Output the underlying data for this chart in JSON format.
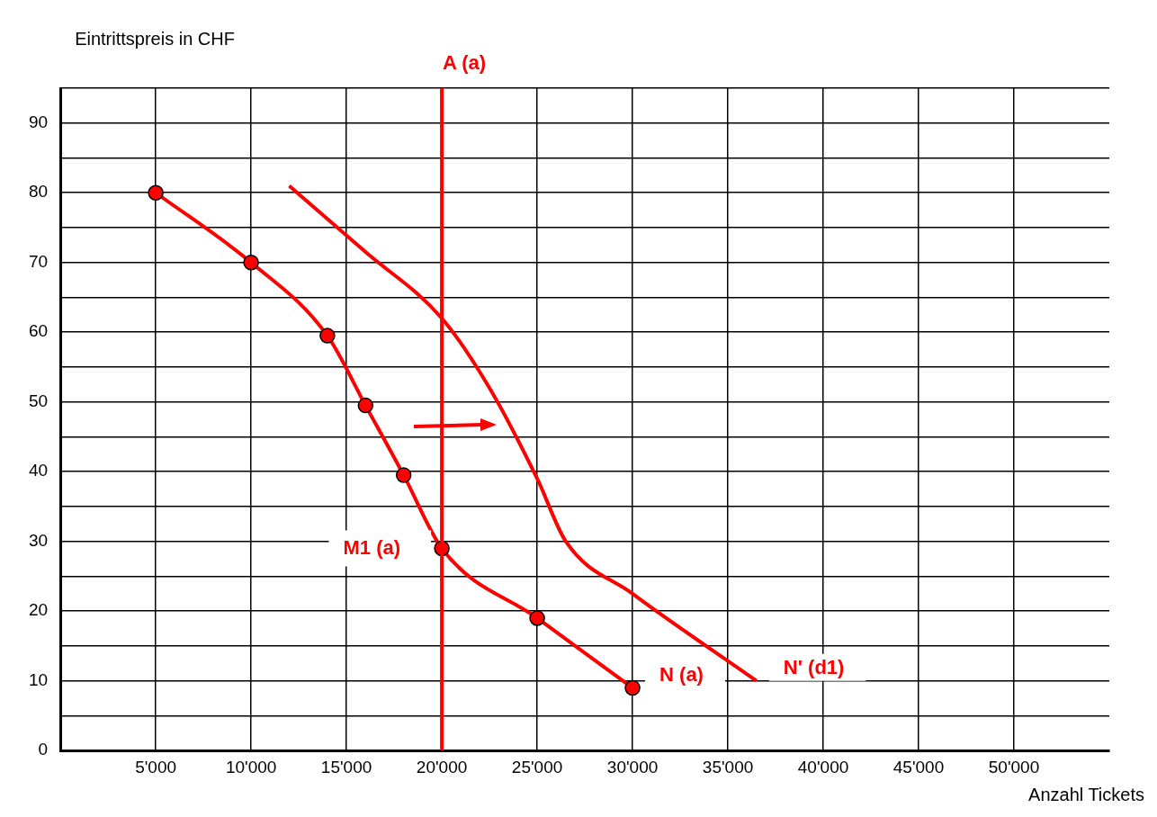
{
  "chart_data": {
    "type": "line",
    "xlabel": "Anzahl Tickets",
    "ylabel": "Eintrittspreis in CHF",
    "xlim": [
      0,
      55000
    ],
    "xticks": [
      {
        "value": 5000,
        "label": "5'000"
      },
      {
        "value": 10000,
        "label": "10'000"
      },
      {
        "value": 15000,
        "label": "15'000"
      },
      {
        "value": 20000,
        "label": "20'000"
      },
      {
        "value": 25000,
        "label": "25'000"
      },
      {
        "value": 30000,
        "label": "30'000"
      },
      {
        "value": 35000,
        "label": "35'000"
      },
      {
        "value": 40000,
        "label": "40'000"
      },
      {
        "value": 45000,
        "label": "45'000"
      },
      {
        "value": 50000,
        "label": "50'000"
      }
    ],
    "ylim": [
      0,
      95
    ],
    "yticks": [
      0,
      {
        "value": 5,
        "label": null
      },
      10,
      {
        "value": 15,
        "label": null
      },
      20,
      {
        "value": 25,
        "label": null
      },
      30,
      {
        "value": 35,
        "label": null
      },
      40,
      {
        "value": 45,
        "label": null
      },
      50,
      {
        "value": 55,
        "label": null
      },
      60,
      {
        "value": 65,
        "label": null
      },
      70,
      {
        "value": 75,
        "label": null
      },
      80,
      {
        "value": 85,
        "label": null
      },
      90,
      {
        "value": 95,
        "label": null
      }
    ],
    "grid": true,
    "legend": false,
    "series": [
      {
        "name": "A (a)",
        "color": "#ff0000",
        "x": [
          20000,
          20000
        ],
        "values": [
          0,
          95
        ],
        "marker": "none"
      },
      {
        "name": "N (a)",
        "color": "#ff0000",
        "x": [
          5000,
          10000,
          14000,
          16000,
          18000,
          20000,
          25000,
          30000
        ],
        "values": [
          80,
          70,
          59.5,
          49.5,
          39.5,
          29,
          19,
          9
        ],
        "marker": "circle"
      },
      {
        "name": "N' (d1)",
        "color": "#ff0000",
        "x": [
          12000,
          16000,
          20000,
          22500,
          25000,
          26500,
          30000,
          36500
        ],
        "values": [
          81,
          71.5,
          62,
          52,
          39,
          30,
          22.5,
          10
        ],
        "marker": "none"
      }
    ],
    "annotations": [
      {
        "text": "M1 (a)",
        "x": 20000,
        "y": 29
      }
    ]
  }
}
